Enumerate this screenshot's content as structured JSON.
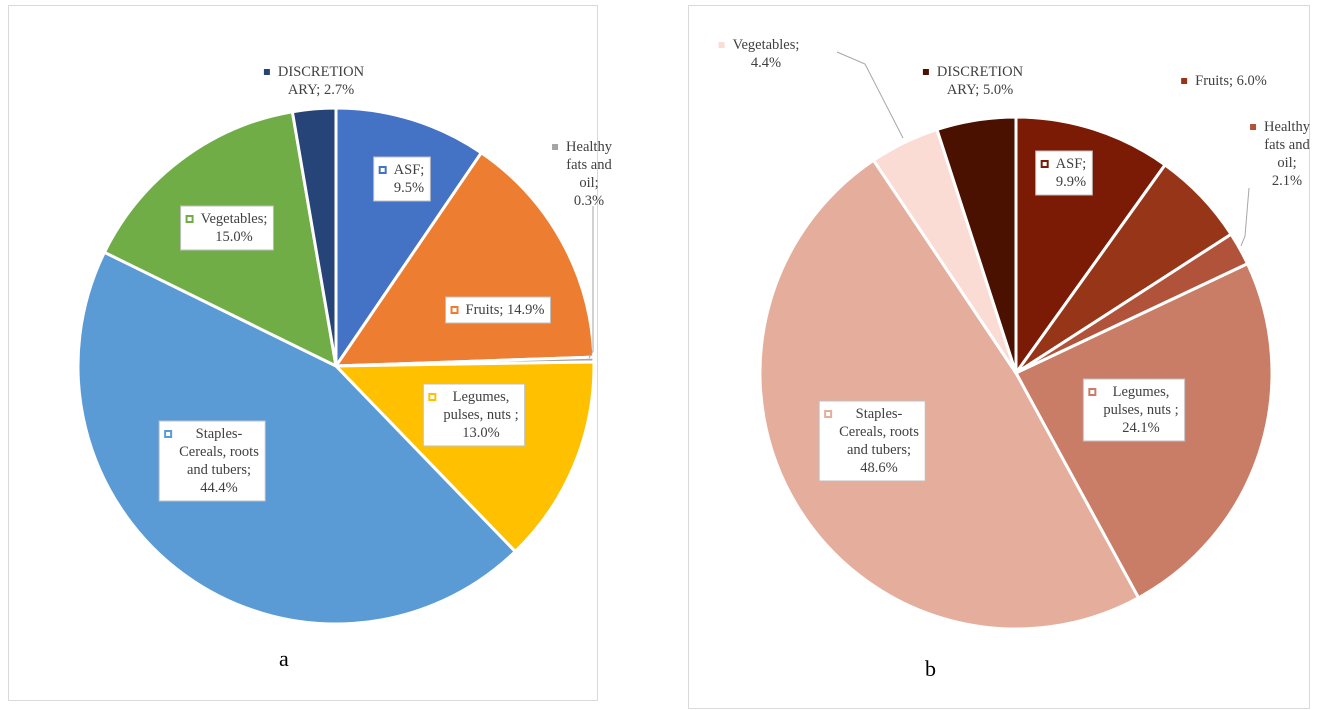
{
  "chart_data": [
    {
      "type": "pie",
      "panel_label": "a",
      "slices": [
        {
          "label": "ASF; 9.5%",
          "value": 9.5,
          "color": "#4472c4"
        },
        {
          "label": "Fruits; 14.9%",
          "value": 14.9,
          "color": "#ed7d31"
        },
        {
          "label": "Healthy fats and oil; 0.3%",
          "value": 0.3,
          "color": "#a5a5a5"
        },
        {
          "label": "Legumes, pulses, nuts ; 13.0%",
          "value": 13.0,
          "color": "#ffc000"
        },
        {
          "label": "Staples-Cereals, roots and tubers; 44.4%",
          "value": 44.4,
          "color": "#5b9bd5"
        },
        {
          "label": "Vegetables; 15.0%",
          "value": 15.0,
          "color": "#70ad47"
        },
        {
          "label": "DISCRETIONARY; 2.7%",
          "value": 2.7,
          "color": "#264478"
        }
      ]
    },
    {
      "type": "pie",
      "panel_label": "b",
      "slices": [
        {
          "label": "ASF; 9.9%",
          "value": 9.9,
          "color": "#7b1a05"
        },
        {
          "label": "Fruits; 6.0%",
          "value": 6.0,
          "color": "#973518"
        },
        {
          "label": "Healthy fats and oil; 2.1%",
          "value": 2.1,
          "color": "#b0533a"
        },
        {
          "label": "Legumes, pulses, nuts ; 24.1%",
          "value": 24.1,
          "color": "#c97c66"
        },
        {
          "label": "Staples-Cereals, roots and tubers; 48.6%",
          "value": 48.6,
          "color": "#e4ad9c"
        },
        {
          "label": "Vegetables; 4.4%",
          "value": 4.4,
          "color": "#fbdcd4"
        },
        {
          "label": "DISCRETIONARY; 5.0%",
          "value": 5.0,
          "color": "#4a1000"
        }
      ]
    }
  ]
}
